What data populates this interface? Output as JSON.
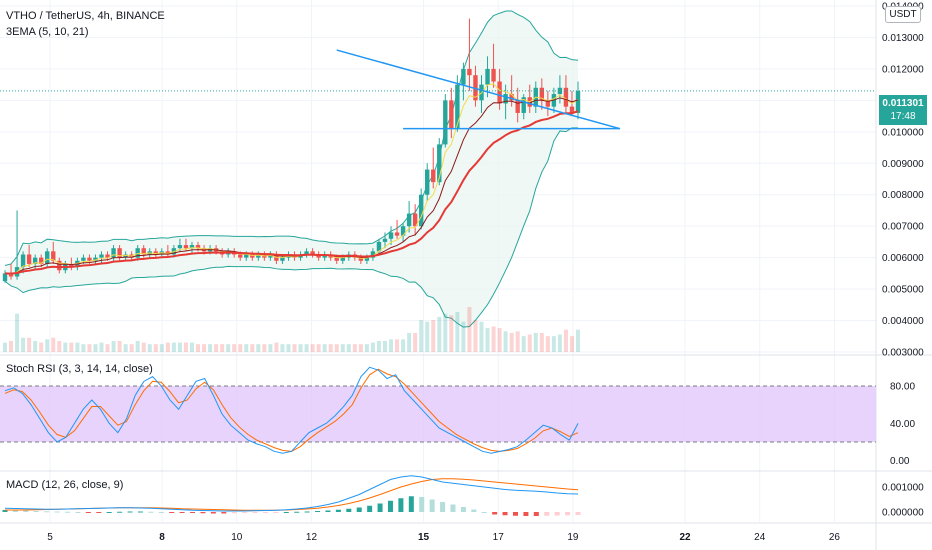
{
  "header": {
    "symbol_line": "VTHO / TetherUS, 4h, BINANCE",
    "ema_line": "3EMA (5, 10, 21)",
    "currency_button": "USDT"
  },
  "last_price": {
    "value": "0.011301",
    "countdown": "17:48",
    "color": "#26a69a"
  },
  "colors": {
    "up": "#26a69a",
    "down": "#ef5350",
    "ema_fast": "#f7d948",
    "ema_mid": "#8b1a1a",
    "ema_slow": "#e53935",
    "bb": "#26a69a",
    "bb_fill": "#e8f5f1",
    "trend": "#2196f3",
    "rsi_band": "#e1c8fb",
    "rsi_k": "#2196f3",
    "rsi_d": "#ff6d00",
    "macd": "#2196f3",
    "signal": "#ff6d00"
  },
  "chart_data": [
    {
      "type": "candlestick",
      "title": "VTHO / TetherUS, 4h, BINANCE",
      "indicator": "3EMA (5, 10, 21)",
      "y_ticks": [
        "0.014000",
        "0.013000",
        "0.012000",
        "0.011000",
        "0.010000",
        "0.009000",
        "0.008000",
        "0.007000",
        "0.006000",
        "0.005000",
        "0.004000",
        "0.003000"
      ],
      "ylim": [
        0.003,
        0.014
      ],
      "x_ticks": [
        {
          "label": "5",
          "bold": false
        },
        {
          "label": "8",
          "bold": true
        },
        {
          "label": "10",
          "bold": false
        },
        {
          "label": "12",
          "bold": false
        },
        {
          "label": "15",
          "bold": true
        },
        {
          "label": "17",
          "bold": false
        },
        {
          "label": "19",
          "bold": false
        },
        {
          "label": "22",
          "bold": true
        },
        {
          "label": "24",
          "bold": false
        },
        {
          "label": "26",
          "bold": false
        }
      ],
      "candles_ohlc": [
        [
          0.00525,
          0.0056,
          0.0052,
          0.0055
        ],
        [
          0.0055,
          0.0058,
          0.0053,
          0.0054
        ],
        [
          0.0054,
          0.0075,
          0.0053,
          0.0057
        ],
        [
          0.0057,
          0.0062,
          0.0055,
          0.0061
        ],
        [
          0.0061,
          0.0064,
          0.0057,
          0.0058
        ],
        [
          0.0058,
          0.0061,
          0.0056,
          0.006
        ],
        [
          0.006,
          0.0061,
          0.0057,
          0.0058
        ],
        [
          0.0058,
          0.0063,
          0.0057,
          0.0062
        ],
        [
          0.0062,
          0.0065,
          0.0058,
          0.0059
        ],
        [
          0.0059,
          0.006,
          0.0055,
          0.0056
        ],
        [
          0.0056,
          0.0059,
          0.0055,
          0.0058
        ],
        [
          0.0058,
          0.006,
          0.0056,
          0.0057
        ],
        [
          0.0057,
          0.006,
          0.0056,
          0.0059
        ],
        [
          0.0059,
          0.0061,
          0.0058,
          0.006
        ],
        [
          0.006,
          0.0061,
          0.0058,
          0.0059
        ],
        [
          0.0059,
          0.0061,
          0.0058,
          0.006
        ],
        [
          0.006,
          0.0062,
          0.0058,
          0.0061
        ],
        [
          0.0061,
          0.0062,
          0.0059,
          0.006
        ],
        [
          0.006,
          0.0064,
          0.0059,
          0.0063
        ],
        [
          0.0063,
          0.0064,
          0.0059,
          0.006
        ],
        [
          0.006,
          0.0062,
          0.0059,
          0.0061
        ],
        [
          0.0061,
          0.0062,
          0.0059,
          0.006
        ],
        [
          0.006,
          0.0064,
          0.0059,
          0.0063
        ],
        [
          0.0063,
          0.0064,
          0.006,
          0.0061
        ],
        [
          0.0061,
          0.0063,
          0.006,
          0.0062
        ],
        [
          0.0062,
          0.0063,
          0.006,
          0.0061
        ],
        [
          0.0061,
          0.0063,
          0.006,
          0.0062
        ],
        [
          0.0062,
          0.0064,
          0.006,
          0.0061
        ],
        [
          0.0061,
          0.0064,
          0.006,
          0.0063
        ],
        [
          0.0063,
          0.0066,
          0.0062,
          0.0064
        ],
        [
          0.0064,
          0.0066,
          0.0062,
          0.0063
        ],
        [
          0.0063,
          0.0065,
          0.0061,
          0.0064
        ],
        [
          0.0064,
          0.0065,
          0.0062,
          0.0063
        ],
        [
          0.0063,
          0.0064,
          0.0061,
          0.0062
        ],
        [
          0.0062,
          0.0064,
          0.0061,
          0.0063
        ],
        [
          0.0063,
          0.0064,
          0.0061,
          0.0062
        ],
        [
          0.0062,
          0.0063,
          0.006,
          0.0061
        ],
        [
          0.0061,
          0.0063,
          0.006,
          0.0062
        ],
        [
          0.0062,
          0.0063,
          0.006,
          0.0061
        ],
        [
          0.0061,
          0.0062,
          0.0059,
          0.006
        ],
        [
          0.006,
          0.0062,
          0.0059,
          0.0061
        ],
        [
          0.0061,
          0.0062,
          0.0059,
          0.006
        ],
        [
          0.006,
          0.0062,
          0.0059,
          0.0061
        ],
        [
          0.0061,
          0.0062,
          0.0059,
          0.006
        ],
        [
          0.006,
          0.0062,
          0.0059,
          0.0061
        ],
        [
          0.0061,
          0.0062,
          0.0058,
          0.0059
        ],
        [
          0.0059,
          0.0061,
          0.0058,
          0.006
        ],
        [
          0.006,
          0.0062,
          0.0059,
          0.0061
        ],
        [
          0.0061,
          0.0062,
          0.0059,
          0.006
        ],
        [
          0.006,
          0.0062,
          0.0059,
          0.0061
        ],
        [
          0.0061,
          0.0063,
          0.006,
          0.0062
        ],
        [
          0.0062,
          0.0063,
          0.006,
          0.0061
        ],
        [
          0.0061,
          0.0062,
          0.0059,
          0.006
        ],
        [
          0.006,
          0.0062,
          0.0059,
          0.0061
        ],
        [
          0.0061,
          0.0062,
          0.0059,
          0.006
        ],
        [
          0.006,
          0.0061,
          0.0058,
          0.0059
        ],
        [
          0.0059,
          0.0061,
          0.0058,
          0.006
        ],
        [
          0.006,
          0.0062,
          0.0059,
          0.0061
        ],
        [
          0.0061,
          0.0062,
          0.0059,
          0.006
        ],
        [
          0.006,
          0.0061,
          0.0058,
          0.0059
        ],
        [
          0.0059,
          0.0061,
          0.0058,
          0.006
        ],
        [
          0.006,
          0.0063,
          0.0059,
          0.0062
        ],
        [
          0.0062,
          0.0066,
          0.0061,
          0.0065
        ],
        [
          0.0065,
          0.0068,
          0.0063,
          0.0066
        ],
        [
          0.0066,
          0.007,
          0.0064,
          0.0068
        ],
        [
          0.0068,
          0.0072,
          0.0066,
          0.0067
        ],
        [
          0.0067,
          0.0071,
          0.0065,
          0.007
        ],
        [
          0.007,
          0.0078,
          0.0068,
          0.0074
        ],
        [
          0.0074,
          0.0077,
          0.0067,
          0.007
        ],
        [
          0.007,
          0.0082,
          0.0069,
          0.008
        ],
        [
          0.008,
          0.009,
          0.0078,
          0.0088
        ],
        [
          0.0088,
          0.0095,
          0.0082,
          0.0084
        ],
        [
          0.0084,
          0.0098,
          0.0083,
          0.0096
        ],
        [
          0.0096,
          0.0112,
          0.0095,
          0.011
        ],
        [
          0.011,
          0.0114,
          0.0098,
          0.0101
        ],
        [
          0.0101,
          0.0118,
          0.01,
          0.0115
        ],
        [
          0.0115,
          0.0122,
          0.011,
          0.012
        ],
        [
          0.012,
          0.0136,
          0.0113,
          0.0118
        ],
        [
          0.0118,
          0.0121,
          0.0108,
          0.011
        ],
        [
          0.011,
          0.0118,
          0.0106,
          0.0115
        ],
        [
          0.0115,
          0.0124,
          0.0111,
          0.012
        ],
        [
          0.012,
          0.0128,
          0.0114,
          0.0116
        ],
        [
          0.0116,
          0.012,
          0.0107,
          0.0109
        ],
        [
          0.0109,
          0.0115,
          0.0104,
          0.0112
        ],
        [
          0.0112,
          0.0118,
          0.0108,
          0.011
        ],
        [
          0.011,
          0.0114,
          0.0103,
          0.0106
        ],
        [
          0.0106,
          0.0112,
          0.0104,
          0.0111
        ],
        [
          0.0111,
          0.0115,
          0.0106,
          0.0108
        ],
        [
          0.0108,
          0.0116,
          0.0106,
          0.0114
        ],
        [
          0.0114,
          0.0117,
          0.0107,
          0.011
        ],
        [
          0.011,
          0.0113,
          0.0105,
          0.0108
        ],
        [
          0.0108,
          0.0114,
          0.0106,
          0.0112
        ],
        [
          0.0112,
          0.0118,
          0.0109,
          0.0114
        ],
        [
          0.0114,
          0.0118,
          0.0106,
          0.0108
        ],
        [
          0.0108,
          0.0113,
          0.0105,
          0.0106
        ],
        [
          0.0106,
          0.0116,
          0.0104,
          0.0113
        ]
      ],
      "trendline_upper": {
        "from": [
          0.0126,
          55
        ],
        "to": [
          0.0101,
          104
        ]
      },
      "trendline_lower": {
        "from": [
          0.0101,
          66
        ],
        "to": [
          0.0101,
          104
        ]
      }
    },
    {
      "type": "line",
      "title": "Stoch RSI (3, 3, 14, 14, close)",
      "y_ticks": [
        "80.00",
        "40.00",
        "0.00"
      ],
      "ylim": [
        -10,
        110
      ],
      "band": [
        20,
        80
      ],
      "series": [
        {
          "values": [
            75,
            78,
            72,
            60,
            45,
            30,
            20,
            25,
            40,
            55,
            65,
            55,
            40,
            30,
            45,
            70,
            85,
            90,
            80,
            65,
            55,
            70,
            85,
            88,
            70,
            50,
            38,
            30,
            22,
            18,
            15,
            10,
            8,
            10,
            20,
            30,
            35,
            40,
            48,
            58,
            70,
            90,
            100,
            97,
            88,
            92,
            75,
            65,
            55,
            45,
            35,
            30,
            25,
            20,
            15,
            10,
            8,
            10,
            12,
            15,
            22,
            30,
            38,
            35,
            28,
            22,
            40
          ]
        },
        {
          "values": [
            72,
            76,
            74,
            65,
            52,
            38,
            28,
            25,
            32,
            45,
            58,
            58,
            48,
            38,
            42,
            60,
            75,
            85,
            84,
            74,
            62,
            65,
            77,
            84,
            76,
            60,
            46,
            36,
            28,
            22,
            18,
            14,
            11,
            10,
            15,
            23,
            30,
            36,
            42,
            50,
            60,
            78,
            92,
            98,
            93,
            90,
            82,
            72,
            62,
            52,
            42,
            35,
            28,
            23,
            18,
            14,
            11,
            10,
            11,
            13,
            18,
            24,
            32,
            35,
            31,
            26,
            30
          ]
        }
      ]
    },
    {
      "type": "bar+line",
      "title": "MACD (12, 26, close, 9)",
      "y_ticks": [
        "0.001000",
        "0.000000"
      ],
      "ylim": [
        -0.0004,
        0.0016
      ],
      "histogram": [
        8e-05,
        7e-05,
        6e-05,
        4e-05,
        3e-05,
        2e-05,
        1e-05,
        0,
        -1e-05,
        -1e-05,
        0,
        1e-05,
        2e-05,
        2e-05,
        1e-05,
        0,
        -2e-05,
        -3e-05,
        -4e-05,
        -5e-05,
        -6e-05,
        -6e-05,
        -5e-05,
        -4e-05,
        -3e-05,
        -2e-05,
        -1e-05,
        0,
        1e-05,
        2e-05,
        4e-05,
        6e-05,
        9e-05,
        0.00013,
        0.00018,
        0.00025,
        0.00034,
        0.00045,
        0.00055,
        0.00063,
        0.0006,
        0.0005,
        0.0004,
        0.0003,
        0.0002,
        0.0001,
        0,
        -0.0001,
        -0.00013,
        -0.00015,
        -0.00016,
        -0.00016,
        -0.00015,
        -0.00014,
        -0.00013,
        -0.00012
      ],
      "series": [
        {
          "values": [
            0.00015,
            0.00014,
            0.00013,
            0.00012,
            0.00011,
            0.00011,
            0.00012,
            0.00013,
            0.00014,
            0.00015,
            0.00016,
            0.00017,
            0.00017,
            0.00016,
            0.00015,
            0.00013,
            0.00011,
            9e-05,
            7e-05,
            6e-05,
            5e-05,
            4e-05,
            4e-05,
            4e-05,
            5e-05,
            6e-05,
            7e-05,
            9e-05,
            0.00012,
            0.00016,
            0.00022,
            0.0003,
            0.0004,
            0.00055,
            0.0007,
            0.0009,
            0.0011,
            0.0013,
            0.0014,
            0.00145,
            0.0014,
            0.0013,
            0.0012,
            0.00115,
            0.0011,
            0.00105,
            0.001,
            0.00095,
            0.0009,
            0.00087,
            0.00085,
            0.00083,
            0.0008,
            0.00076,
            0.00073,
            0.00072
          ]
        },
        {
          "values": [
            8e-05,
            8e-05,
            8e-05,
            9e-05,
            0.0001,
            0.00011,
            0.00012,
            0.00013,
            0.00014,
            0.00015,
            0.00016,
            0.00017,
            0.00017,
            0.00017,
            0.00017,
            0.00016,
            0.00015,
            0.00013,
            0.00012,
            0.00011,
            0.0001,
            9e-05,
            8e-05,
            7e-05,
            7e-05,
            7e-05,
            7e-05,
            8e-05,
            0.0001,
            0.00012,
            0.00015,
            0.0002,
            0.00026,
            0.00034,
            0.00044,
            0.00056,
            0.0007,
            0.00085,
            0.001,
            0.00112,
            0.00122,
            0.0013,
            0.00133,
            0.00133,
            0.00131,
            0.00128,
            0.00124,
            0.0012,
            0.00116,
            0.00112,
            0.00108,
            0.00104,
            0.001,
            0.00096,
            0.00092,
            0.00089
          ]
        }
      ]
    }
  ]
}
